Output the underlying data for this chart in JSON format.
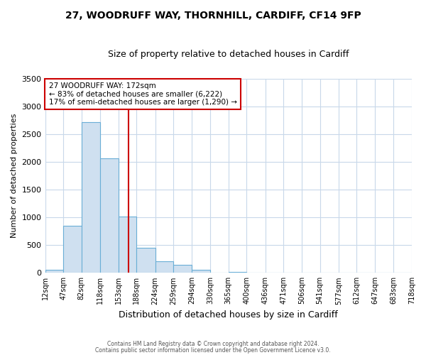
{
  "title": "27, WOODRUFF WAY, THORNHILL, CARDIFF, CF14 9FP",
  "subtitle": "Size of property relative to detached houses in Cardiff",
  "xlabel": "Distribution of detached houses by size in Cardiff",
  "ylabel": "Number of detached properties",
  "bin_edges": [
    12,
    47,
    82,
    118,
    153,
    188,
    224,
    259,
    294,
    330,
    365,
    400,
    436,
    471,
    506,
    541,
    577,
    612,
    647,
    683,
    718
  ],
  "bin_counts": [
    55,
    850,
    2720,
    2060,
    1010,
    450,
    210,
    150,
    55,
    0,
    20,
    0,
    0,
    0,
    0,
    0,
    0,
    0,
    0,
    0
  ],
  "bar_color": "#cfe0f0",
  "bar_edge_color": "#6aaed6",
  "vline_color": "#cc0000",
  "vline_x": 172,
  "annotation_line1": "27 WOODRUFF WAY: 172sqm",
  "annotation_line2": "← 83% of detached houses are smaller (6,222)",
  "annotation_line3": "17% of semi-detached houses are larger (1,290) →",
  "annotation_box_color": "white",
  "annotation_box_edge_color": "#cc0000",
  "ylim": [
    0,
    3500
  ],
  "yticks": [
    0,
    500,
    1000,
    1500,
    2000,
    2500,
    3000,
    3500
  ],
  "xtick_labels": [
    "12sqm",
    "47sqm",
    "82sqm",
    "118sqm",
    "153sqm",
    "188sqm",
    "224sqm",
    "259sqm",
    "294sqm",
    "330sqm",
    "365sqm",
    "400sqm",
    "436sqm",
    "471sqm",
    "506sqm",
    "541sqm",
    "577sqm",
    "612sqm",
    "647sqm",
    "683sqm",
    "718sqm"
  ],
  "footer_line1": "Contains HM Land Registry data © Crown copyright and database right 2024.",
  "footer_line2": "Contains public sector information licensed under the Open Government Licence v3.0.",
  "bg_color": "#ffffff",
  "grid_color": "#c8d8ea"
}
